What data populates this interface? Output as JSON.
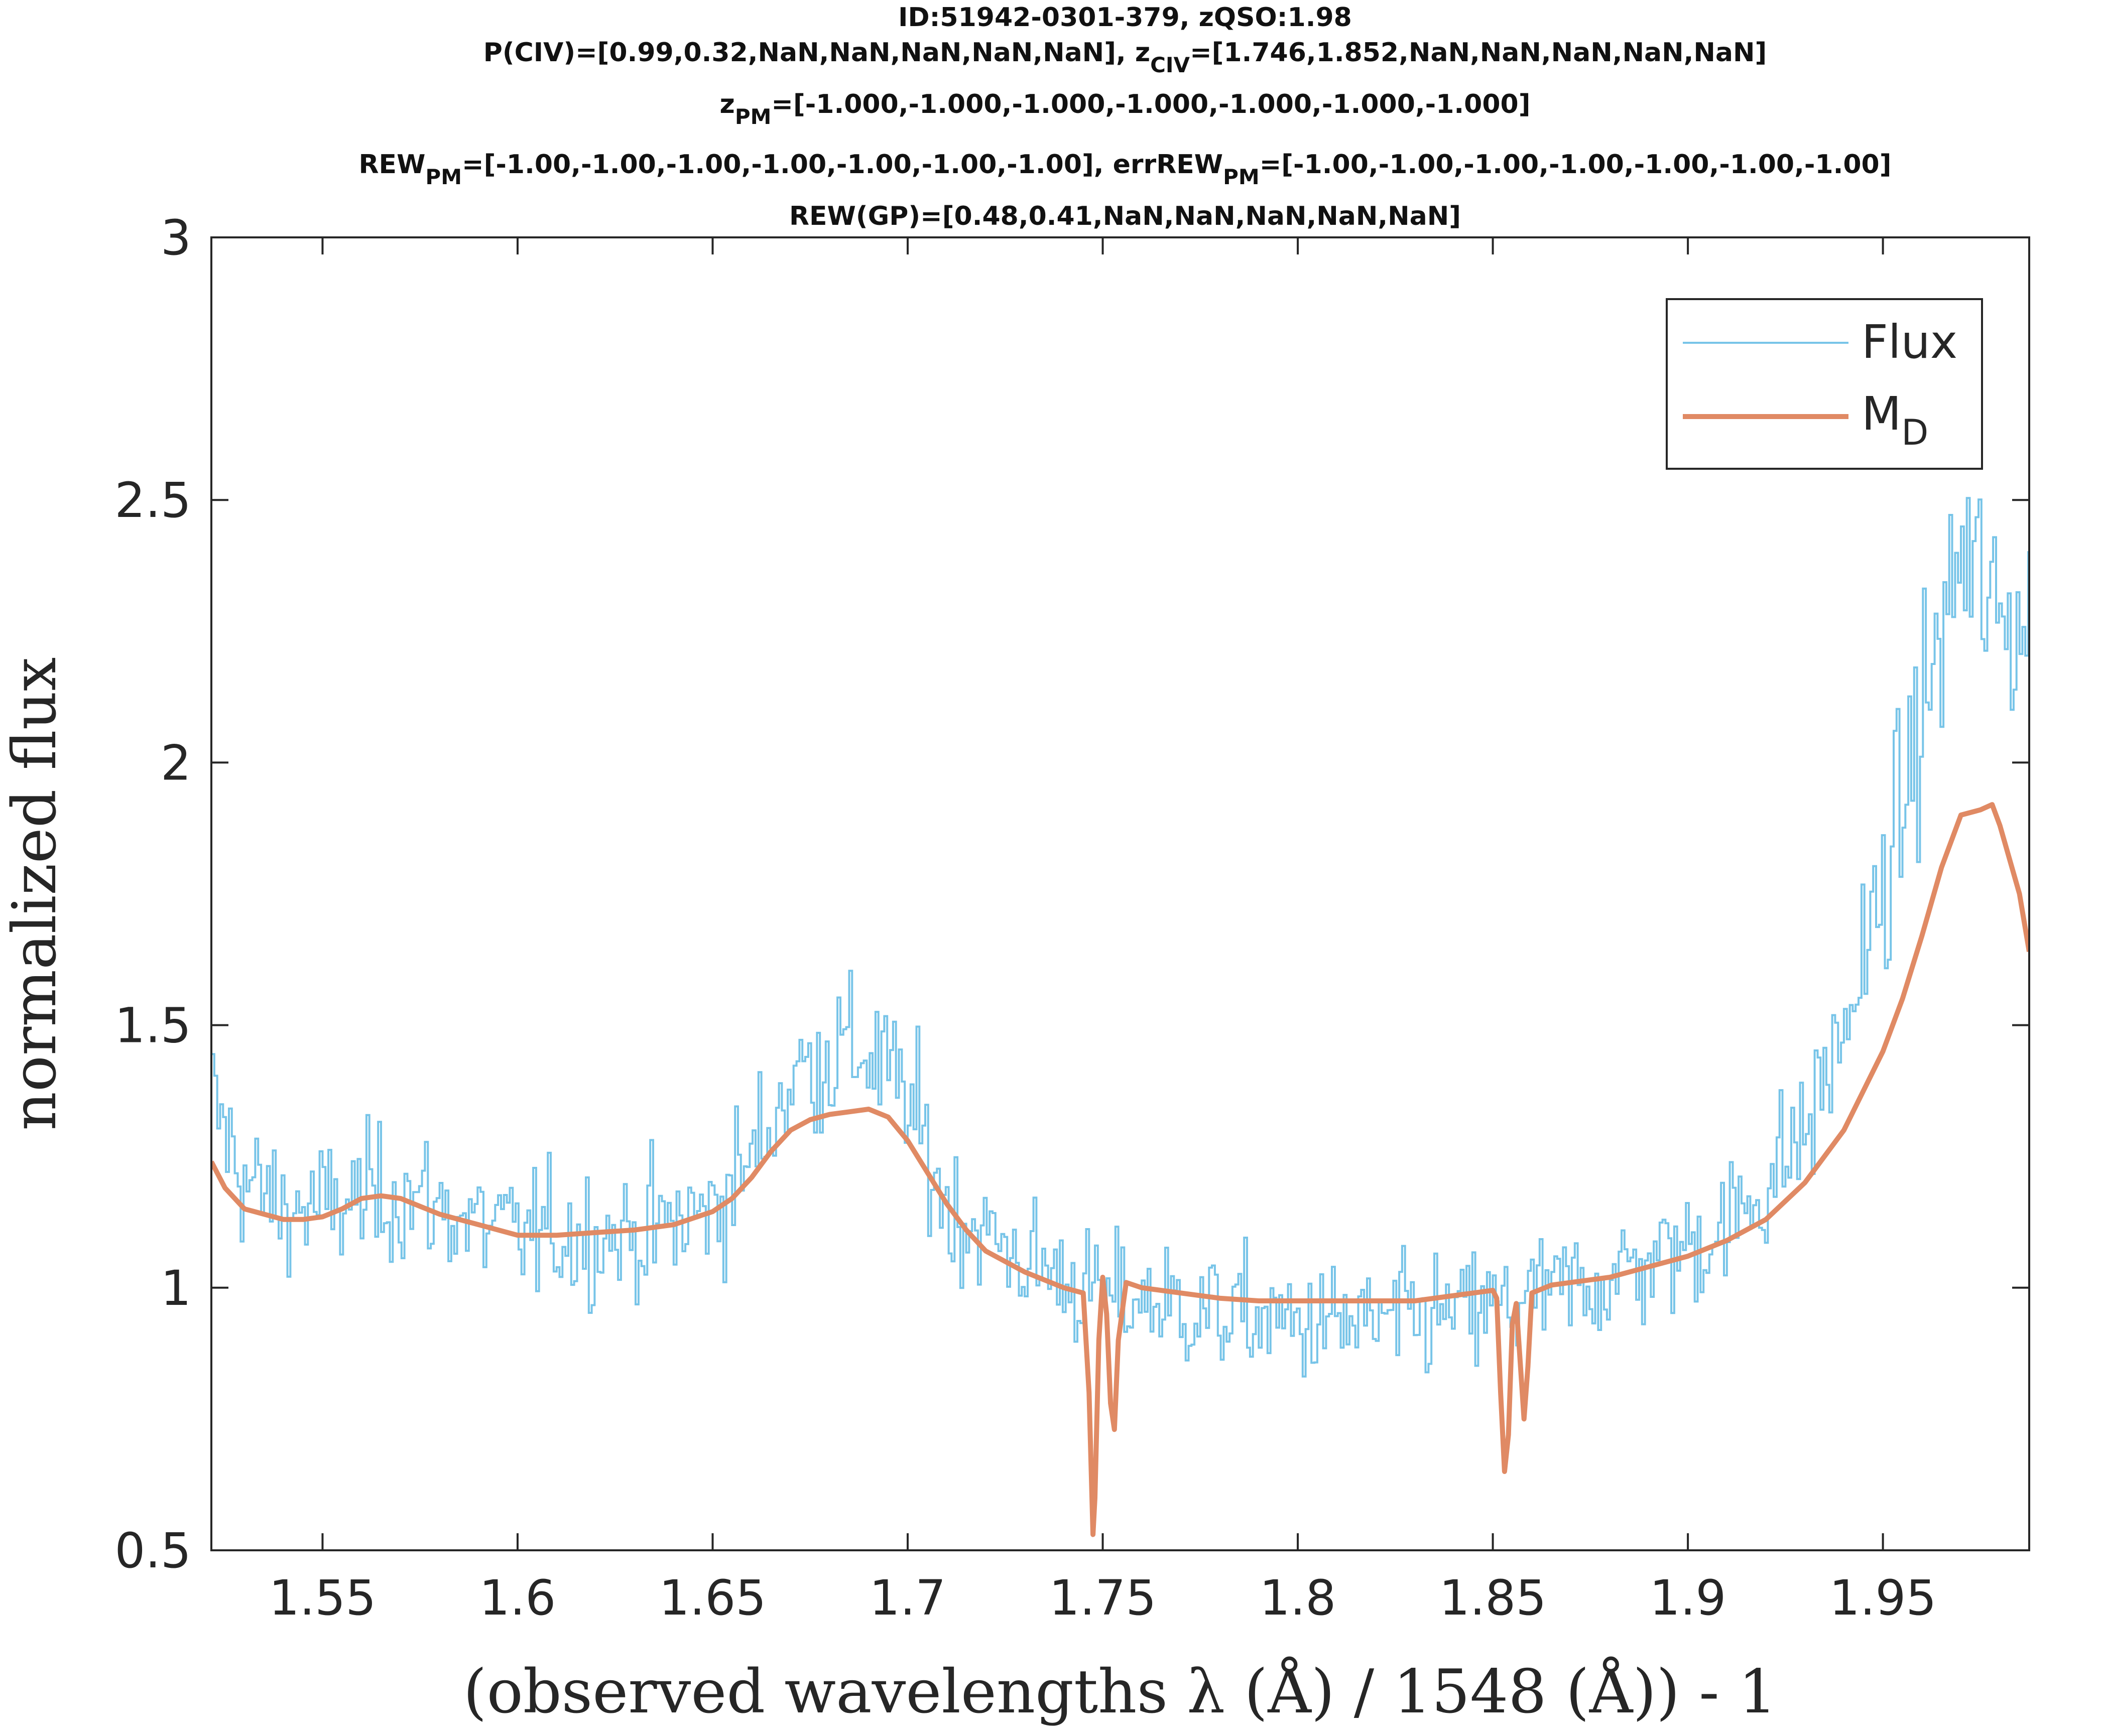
{
  "chart_data": {
    "type": "line",
    "title_lines": [
      "ID:51942-0301-379, zQSO:1.98",
      "P(CIV)=[0.99,0.32,NaN,NaN,NaN,NaN,NaN], z_CIV=[1.746,1.852,NaN,NaN,NaN,NaN,NaN]",
      "z_PM=[-1.000,-1.000,-1.000,-1.000,-1.000,-1.000,-1.000]",
      "REW_PM=[-1.00,-1.00,-1.00,-1.00,-1.00,-1.00,-1.00], errREW_PM=[-1.00,-1.00,-1.00,-1.00,-1.00,-1.00,-1.00]",
      "REW(GP)=[0.48,0.41,NaN,NaN,NaN,NaN,NaN]"
    ],
    "title_parts": {
      "line1": "ID:51942-0301-379, zQSO:1.98",
      "line2a": "P(CIV)=[0.99,0.32,NaN,NaN,NaN,NaN,NaN], z",
      "line2_sub": "CIV",
      "line2b": "=[1.746,1.852,NaN,NaN,NaN,NaN,NaN]",
      "line3a": "z",
      "line3_sub": "PM",
      "line3b": "=[-1.000,-1.000,-1.000,-1.000,-1.000,-1.000,-1.000]",
      "line4a": "REW",
      "line4_sub1": "PM",
      "line4b": "=[-1.00,-1.00,-1.00,-1.00,-1.00,-1.00,-1.00], errREW",
      "line4_sub2": "PM",
      "line4c": "=[-1.00,-1.00,-1.00,-1.00,-1.00,-1.00,-1.00]",
      "line5": "REW(GP)=[0.48,0.41,NaN,NaN,NaN,NaN,NaN]"
    },
    "xlabel": "(observed wavelengths λ (Å) / 1548 (Å)) - 1",
    "ylabel": "normalized flux",
    "xlim": [
      1.5215,
      1.9875
    ],
    "ylim": [
      0.5,
      3
    ],
    "xticks": [
      1.55,
      1.6,
      1.65,
      1.7,
      1.75,
      1.8,
      1.85,
      1.9,
      1.95
    ],
    "xtick_labels": [
      "1.55",
      "1.6",
      "1.65",
      "1.7",
      "1.75",
      "1.8",
      "1.85",
      "1.9",
      "1.95"
    ],
    "yticks": [
      0.5,
      1,
      1.5,
      2,
      2.5,
      3
    ],
    "ytick_labels": [
      "0.5",
      "1",
      "1.5",
      "2",
      "2.5",
      "3"
    ],
    "grid": false,
    "legend_position": "top-right",
    "legend": {
      "flux_label": "Flux",
      "model_label": "M",
      "model_label_sub": "D"
    },
    "series": [
      {
        "name": "Flux",
        "style": "stairs",
        "color": "#77C4E8",
        "x": [
          1.5215,
          1.53,
          1.54,
          1.55,
          1.56,
          1.57,
          1.58,
          1.59,
          1.6,
          1.61,
          1.62,
          1.63,
          1.64,
          1.65,
          1.66,
          1.67,
          1.68,
          1.69,
          1.7,
          1.71,
          1.72,
          1.73,
          1.74,
          1.75,
          1.76,
          1.77,
          1.78,
          1.79,
          1.8,
          1.81,
          1.82,
          1.83,
          1.84,
          1.85,
          1.86,
          1.87,
          1.88,
          1.89,
          1.9,
          1.91,
          1.92,
          1.93,
          1.94,
          1.95,
          1.96,
          1.97,
          1.98,
          1.9875
        ],
        "y": [
          1.35,
          1.2,
          1.15,
          1.15,
          1.17,
          1.18,
          1.15,
          1.12,
          1.1,
          1.1,
          1.1,
          1.1,
          1.12,
          1.15,
          1.25,
          1.4,
          1.45,
          1.45,
          1.35,
          1.15,
          1.1,
          1.05,
          1.02,
          0.98,
          0.98,
          0.96,
          0.95,
          0.94,
          0.93,
          0.93,
          0.93,
          0.94,
          0.95,
          0.96,
          0.98,
          1.0,
          1.02,
          1.05,
          1.08,
          1.12,
          1.2,
          1.3,
          1.5,
          1.75,
          2.1,
          2.4,
          2.25,
          2.3
        ]
      },
      {
        "name": "M_D",
        "color": "#E08A64",
        "x": [
          1.5215,
          1.525,
          1.53,
          1.535,
          1.54,
          1.545,
          1.55,
          1.555,
          1.56,
          1.565,
          1.57,
          1.575,
          1.58,
          1.59,
          1.6,
          1.61,
          1.62,
          1.63,
          1.64,
          1.65,
          1.655,
          1.66,
          1.665,
          1.67,
          1.675,
          1.68,
          1.685,
          1.69,
          1.695,
          1.7,
          1.705,
          1.71,
          1.715,
          1.72,
          1.73,
          1.74,
          1.745,
          1.7465,
          1.7475,
          1.748,
          1.749,
          1.75,
          1.751,
          1.752,
          1.753,
          1.754,
          1.756,
          1.76,
          1.77,
          1.78,
          1.79,
          1.8,
          1.81,
          1.82,
          1.83,
          1.84,
          1.85,
          1.851,
          1.852,
          1.853,
          1.854,
          1.855,
          1.856,
          1.857,
          1.858,
          1.859,
          1.86,
          1.865,
          1.87,
          1.88,
          1.89,
          1.9,
          1.91,
          1.92,
          1.93,
          1.94,
          1.95,
          1.955,
          1.96,
          1.965,
          1.97,
          1.975,
          1.978,
          1.98,
          1.985,
          1.9875
        ],
        "y": [
          1.24,
          1.19,
          1.15,
          1.14,
          1.13,
          1.13,
          1.135,
          1.15,
          1.17,
          1.175,
          1.17,
          1.155,
          1.14,
          1.12,
          1.1,
          1.1,
          1.105,
          1.11,
          1.12,
          1.145,
          1.17,
          1.21,
          1.26,
          1.3,
          1.32,
          1.33,
          1.335,
          1.34,
          1.325,
          1.28,
          1.22,
          1.16,
          1.11,
          1.07,
          1.03,
          1.0,
          0.99,
          0.8,
          0.53,
          0.6,
          0.9,
          1.02,
          0.95,
          0.78,
          0.73,
          0.9,
          1.01,
          1.0,
          0.99,
          0.98,
          0.975,
          0.975,
          0.975,
          0.975,
          0.975,
          0.985,
          0.995,
          0.98,
          0.8,
          0.65,
          0.72,
          0.93,
          0.97,
          0.86,
          0.75,
          0.85,
          0.99,
          1.005,
          1.01,
          1.02,
          1.04,
          1.06,
          1.09,
          1.13,
          1.2,
          1.3,
          1.45,
          1.55,
          1.67,
          1.8,
          1.9,
          1.91,
          1.92,
          1.88,
          1.75,
          1.64
        ]
      }
    ]
  }
}
